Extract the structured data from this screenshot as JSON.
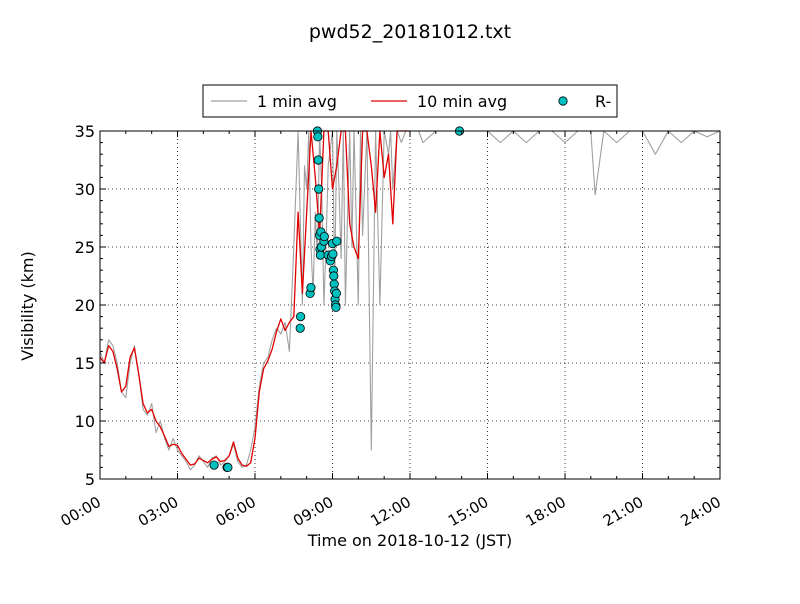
{
  "chart_data": {
    "type": "line",
    "title": "pwd52_20181012.txt",
    "xlabel": "Time on 2018-10-12 (JST)",
    "ylabel": "Visibility (km)",
    "xlim": [
      "00:00",
      "24:00"
    ],
    "ylim": [
      5,
      35
    ],
    "x_ticks": [
      "00:00",
      "03:00",
      "06:00",
      "09:00",
      "12:00",
      "15:00",
      "18:00",
      "21:00",
      "24:00"
    ],
    "y_ticks": [
      5,
      10,
      15,
      20,
      25,
      30,
      35
    ],
    "grid": true,
    "legend_position": "top-center",
    "series": [
      {
        "name": "1 min avg",
        "color": "#a0a0a0",
        "style": "line",
        "x": [
          "00:00",
          "00:10",
          "00:20",
          "00:30",
          "00:40",
          "00:50",
          "01:00",
          "01:10",
          "01:20",
          "01:30",
          "01:40",
          "01:50",
          "02:00",
          "02:10",
          "02:20",
          "02:30",
          "02:40",
          "02:50",
          "03:00",
          "03:10",
          "03:20",
          "03:30",
          "03:40",
          "03:50",
          "04:00",
          "04:10",
          "04:20",
          "04:30",
          "04:40",
          "04:50",
          "05:00",
          "05:10",
          "05:20",
          "05:30",
          "05:40",
          "05:50",
          "06:00",
          "06:10",
          "06:20",
          "06:30",
          "06:40",
          "06:50",
          "07:00",
          "07:10",
          "07:20",
          "07:30",
          "07:40",
          "07:50",
          "07:55",
          "08:00",
          "08:05",
          "08:10",
          "08:15",
          "08:20",
          "08:25",
          "08:30",
          "08:35",
          "08:40",
          "08:45",
          "08:50",
          "09:00",
          "09:05",
          "09:10",
          "09:15",
          "09:20",
          "09:25",
          "09:30",
          "09:35",
          "09:40",
          "09:45",
          "09:50",
          "10:00",
          "10:05",
          "10:10",
          "10:20",
          "10:30",
          "10:40",
          "10:50",
          "11:00",
          "11:10",
          "11:15",
          "11:20",
          "11:30",
          "11:40",
          "11:50",
          "12:00",
          "12:10",
          "12:20",
          "12:30",
          "13:00",
          "13:30",
          "14:00",
          "14:30",
          "15:00",
          "15:30",
          "16:00",
          "16:30",
          "17:00",
          "17:30",
          "18:00",
          "18:30",
          "19:00",
          "19:10",
          "19:30",
          "20:00",
          "20:30",
          "21:00",
          "21:30",
          "22:00",
          "22:30",
          "23:00",
          "23:30",
          "24:00"
        ],
        "values": [
          16,
          15,
          17,
          16.5,
          15,
          12.5,
          12,
          15,
          16.5,
          14,
          11,
          10.5,
          11.5,
          9,
          10,
          8.5,
          7.5,
          8.5,
          7.5,
          7,
          6.5,
          5.8,
          6.2,
          7,
          6.5,
          6,
          6.8,
          7,
          6.2,
          6.5,
          7,
          8,
          6.5,
          6,
          6.2,
          7.5,
          9.5,
          13,
          15,
          15.5,
          17,
          18,
          17.5,
          18.5,
          16,
          25,
          35,
          20,
          32,
          30,
          35,
          25,
          21,
          28,
          24,
          35,
          30,
          20,
          25,
          32,
          35,
          22,
          35,
          30,
          24,
          35,
          20,
          28,
          35,
          25,
          35,
          20,
          35,
          26,
          35,
          7.5,
          35,
          20,
          35,
          33,
          35,
          30,
          35,
          34,
          35,
          35,
          35,
          35,
          34,
          35,
          35,
          35,
          35,
          35,
          34,
          35,
          34,
          35,
          35,
          34,
          35,
          35,
          29.5,
          35,
          34,
          35,
          35,
          33,
          35,
          34,
          35,
          34.5,
          35
        ]
      },
      {
        "name": "10 min avg",
        "color": "#e00000",
        "style": "line",
        "x": [
          "00:00",
          "00:10",
          "00:20",
          "00:30",
          "00:40",
          "00:50",
          "01:00",
          "01:10",
          "01:20",
          "01:30",
          "01:40",
          "01:50",
          "02:00",
          "02:10",
          "02:20",
          "02:30",
          "02:40",
          "02:50",
          "03:00",
          "03:10",
          "03:20",
          "03:30",
          "03:40",
          "03:50",
          "04:00",
          "04:10",
          "04:20",
          "04:30",
          "04:40",
          "04:50",
          "05:00",
          "05:10",
          "05:20",
          "05:30",
          "05:40",
          "05:50",
          "06:00",
          "06:10",
          "06:20",
          "06:30",
          "06:40",
          "06:50",
          "07:00",
          "07:10",
          "07:20",
          "07:30",
          "07:40",
          "07:50",
          "08:00",
          "08:10",
          "08:20",
          "08:30",
          "08:40",
          "08:50",
          "09:00",
          "09:10",
          "09:20",
          "09:30",
          "09:40",
          "09:50",
          "10:00",
          "10:10",
          "10:20",
          "10:30",
          "10:40",
          "10:50",
          "11:00",
          "11:10",
          "11:20",
          "11:30",
          "11:40",
          "11:50",
          "12:00"
        ],
        "values": [
          15.5,
          15,
          16.5,
          16,
          14.5,
          12.5,
          13,
          15.5,
          16.3,
          14,
          11.5,
          10.7,
          11,
          10,
          9.5,
          8.7,
          7.8,
          8,
          7.9,
          7.2,
          6.7,
          6.2,
          6.3,
          6.8,
          6.6,
          6.4,
          6.7,
          6.9,
          6.5,
          6.6,
          7,
          8.2,
          6.8,
          6.2,
          6.1,
          6.4,
          8.5,
          12.5,
          14.5,
          15.2,
          16.2,
          17.7,
          18.8,
          17.8,
          18.5,
          19,
          28,
          21,
          28,
          35,
          31,
          26,
          35,
          35,
          30,
          32,
          35,
          35,
          27,
          25,
          24,
          35,
          35,
          32,
          28,
          35,
          31,
          33,
          27,
          35,
          35,
          35,
          35
        ]
      },
      {
        "name": "R-",
        "color": "#00c0c0",
        "style": "marker",
        "x": [
          "04:25",
          "04:55",
          "04:57",
          "07:45",
          "07:46",
          "08:08",
          "08:10",
          "08:25",
          "08:26",
          "08:27",
          "08:28",
          "08:29",
          "08:30",
          "08:31",
          "08:32",
          "08:33",
          "08:34",
          "08:40",
          "08:41",
          "08:50",
          "08:55",
          "08:58",
          "09:00",
          "09:01",
          "09:02",
          "09:03",
          "09:04",
          "09:05",
          "09:06",
          "09:07",
          "09:08",
          "09:09",
          "09:10",
          "13:55"
        ],
        "values": [
          6.2,
          6.0,
          6.0,
          18.0,
          19.0,
          21.0,
          21.5,
          35,
          34.5,
          32.5,
          30,
          27.5,
          26,
          24.8,
          24.3,
          26.3,
          25,
          25.5,
          25.9,
          24.3,
          23.8,
          24.2,
          25.3,
          24.4,
          23,
          22.5,
          21.8,
          21.2,
          20.5,
          20,
          19.8,
          21,
          25.5,
          35
        ]
      }
    ]
  }
}
